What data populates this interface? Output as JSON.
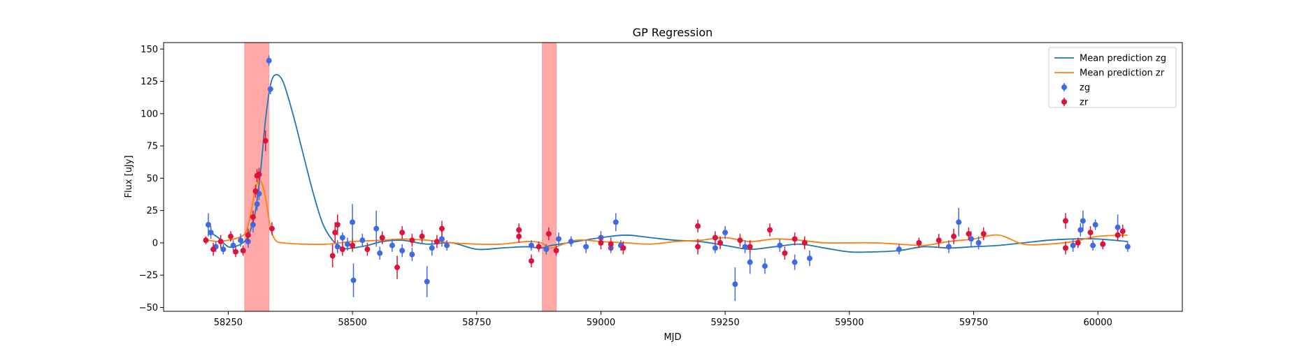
{
  "chart_data": {
    "type": "scatter",
    "title": "GP Regression",
    "xlabel": "MJD",
    "ylabel": "Flux [uJy]",
    "xlim": [
      58120,
      60170
    ],
    "ylim": [
      -53,
      155
    ],
    "xticks": [
      58250,
      58500,
      58750,
      59000,
      59250,
      59500,
      59750,
      60000
    ],
    "yticks": [
      -50,
      -25,
      0,
      25,
      50,
      75,
      100,
      125,
      150
    ],
    "legend_position": "top-right",
    "highlight_regions": [
      {
        "x0": 58283,
        "x1": 58332,
        "color": "#ff9999"
      },
      {
        "x0": 58882,
        "x1": 58910,
        "color": "#ff9999"
      }
    ],
    "series": [
      {
        "name": "Mean prediction zg",
        "kind": "line",
        "color": "#1f77b4",
        "x": [
          58210,
          58230,
          58250,
          58270,
          58285,
          58295,
          58305,
          58315,
          58325,
          58335,
          58345,
          58360,
          58380,
          58400,
          58420,
          58440,
          58460,
          58480,
          58500,
          58530,
          58560,
          58600,
          58650,
          58700,
          58750,
          58800,
          58850,
          58880,
          58900,
          58950,
          59000,
          59050,
          59100,
          59150,
          59200,
          59250,
          59300,
          59350,
          59400,
          59450,
          59500,
          59550,
          59600,
          59650,
          59700,
          59750,
          59800,
          59850,
          59900,
          59950,
          60000,
          60060
        ],
        "y": [
          9,
          4,
          -3,
          -2,
          2,
          10,
          25,
          55,
          95,
          122,
          130,
          125,
          100,
          70,
          40,
          15,
          2,
          -4,
          -4,
          -2,
          1,
          2,
          -1,
          0,
          -5,
          -4,
          -3,
          -4,
          -2,
          1,
          4,
          6,
          4,
          2,
          1,
          -2,
          -5,
          -3,
          -1,
          -4,
          -7,
          -7,
          -6,
          -3,
          -4,
          -3,
          -2,
          0,
          2,
          3,
          3,
          1
        ]
      },
      {
        "name": "Mean prediction zr",
        "kind": "line",
        "color": "#ff7f0e",
        "x": [
          58210,
          58230,
          58250,
          58270,
          58285,
          58295,
          58305,
          58315,
          58325,
          58335,
          58345,
          58360,
          58400,
          58450,
          58500,
          58560,
          58600,
          58650,
          58700,
          58750,
          58800,
          58850,
          58880,
          58900,
          58950,
          59000,
          59050,
          59100,
          59150,
          59200,
          59250,
          59300,
          59350,
          59400,
          59450,
          59500,
          59550,
          59600,
          59650,
          59700,
          59750,
          59800,
          59850,
          59900,
          59950,
          60000,
          60060
        ],
        "y": [
          2,
          1,
          2,
          4,
          8,
          22,
          42,
          48,
          35,
          12,
          2,
          0,
          -1,
          -1,
          1,
          2,
          3,
          2,
          0,
          -1,
          -1,
          1,
          0,
          -4,
          2,
          1,
          0,
          -1,
          1,
          2,
          4,
          1,
          3,
          2,
          0,
          0,
          0,
          -1,
          -2,
          1,
          3,
          6,
          -1,
          -1,
          1,
          5,
          6
        ]
      },
      {
        "name": "zg",
        "kind": "errorbar",
        "color": "#4169e1",
        "points": [
          {
            "x": 58210,
            "y": 14,
            "err": 9
          },
          {
            "x": 58215,
            "y": 8,
            "err": 5
          },
          {
            "x": 58225,
            "y": -3,
            "err": 4
          },
          {
            "x": 58240,
            "y": -5,
            "err": 4
          },
          {
            "x": 58260,
            "y": -2,
            "err": 4
          },
          {
            "x": 58275,
            "y": 2,
            "err": 5
          },
          {
            "x": 58290,
            "y": 1,
            "err": 5
          },
          {
            "x": 58300,
            "y": 14,
            "err": 6
          },
          {
            "x": 58308,
            "y": 30,
            "err": 5
          },
          {
            "x": 58312,
            "y": 38,
            "err": 5
          },
          {
            "x": 58332,
            "y": 141,
            "err": 4
          },
          {
            "x": 58335,
            "y": 119,
            "err": 4
          },
          {
            "x": 58470,
            "y": -3,
            "err": 5
          },
          {
            "x": 58480,
            "y": 4,
            "err": 4
          },
          {
            "x": 58490,
            "y": -1,
            "err": 5
          },
          {
            "x": 58500,
            "y": 16,
            "err": 14
          },
          {
            "x": 58502,
            "y": -29,
            "err": 13
          },
          {
            "x": 58520,
            "y": 2,
            "err": 5
          },
          {
            "x": 58548,
            "y": 11,
            "err": 14
          },
          {
            "x": 58555,
            "y": -8,
            "err": 5
          },
          {
            "x": 58580,
            "y": -2,
            "err": 5
          },
          {
            "x": 58600,
            "y": -6,
            "err": 5
          },
          {
            "x": 58620,
            "y": -9,
            "err": 5
          },
          {
            "x": 58650,
            "y": -30,
            "err": 12
          },
          {
            "x": 58660,
            "y": -4,
            "err": 6
          },
          {
            "x": 58680,
            "y": 3,
            "err": 6
          },
          {
            "x": 58690,
            "y": -2,
            "err": 4
          },
          {
            "x": 58860,
            "y": -2,
            "err": 4
          },
          {
            "x": 58890,
            "y": -5,
            "err": 4
          },
          {
            "x": 58915,
            "y": 3,
            "err": 5
          },
          {
            "x": 58940,
            "y": 1,
            "err": 4
          },
          {
            "x": 58970,
            "y": -3,
            "err": 5
          },
          {
            "x": 59000,
            "y": 4,
            "err": 5
          },
          {
            "x": 59020,
            "y": -4,
            "err": 4
          },
          {
            "x": 59030,
            "y": 16,
            "err": 7
          },
          {
            "x": 59040,
            "y": -2,
            "err": 4
          },
          {
            "x": 59230,
            "y": -4,
            "err": 4
          },
          {
            "x": 59250,
            "y": 8,
            "err": 5
          },
          {
            "x": 59270,
            "y": -32,
            "err": 13
          },
          {
            "x": 59290,
            "y": -3,
            "err": 5
          },
          {
            "x": 59300,
            "y": -15,
            "err": 9
          },
          {
            "x": 59330,
            "y": -18,
            "err": 6
          },
          {
            "x": 59360,
            "y": -2,
            "err": 5
          },
          {
            "x": 59390,
            "y": -15,
            "err": 6
          },
          {
            "x": 59420,
            "y": -12,
            "err": 6
          },
          {
            "x": 59600,
            "y": -5,
            "err": 4
          },
          {
            "x": 59700,
            "y": -3,
            "err": 5
          },
          {
            "x": 59720,
            "y": 16,
            "err": 11
          },
          {
            "x": 59745,
            "y": 3,
            "err": 6
          },
          {
            "x": 59760,
            "y": 0,
            "err": 5
          },
          {
            "x": 59950,
            "y": -2,
            "err": 5
          },
          {
            "x": 59965,
            "y": 10,
            "err": 5
          },
          {
            "x": 59970,
            "y": 17,
            "err": 8
          },
          {
            "x": 59990,
            "y": -2,
            "err": 4
          },
          {
            "x": 59995,
            "y": 14,
            "err": 4
          },
          {
            "x": 60040,
            "y": 12,
            "err": 10
          },
          {
            "x": 60060,
            "y": -3,
            "err": 4
          }
        ]
      },
      {
        "name": "zr",
        "kind": "errorbar",
        "color": "#dc143c",
        "points": [
          {
            "x": 58205,
            "y": 2,
            "err": 3
          },
          {
            "x": 58220,
            "y": -5,
            "err": 5
          },
          {
            "x": 58235,
            "y": 1,
            "err": 5
          },
          {
            "x": 58255,
            "y": 5,
            "err": 4
          },
          {
            "x": 58265,
            "y": -7,
            "err": 4
          },
          {
            "x": 58280,
            "y": -6,
            "err": 4
          },
          {
            "x": 58290,
            "y": 6,
            "err": 5
          },
          {
            "x": 58300,
            "y": 20,
            "err": 5
          },
          {
            "x": 58305,
            "y": 40,
            "err": 5
          },
          {
            "x": 58308,
            "y": 52,
            "err": 5
          },
          {
            "x": 58312,
            "y": 53,
            "err": 5
          },
          {
            "x": 58325,
            "y": 79,
            "err": 8
          },
          {
            "x": 58338,
            "y": 11,
            "err": 5
          },
          {
            "x": 58460,
            "y": -10,
            "err": 9
          },
          {
            "x": 58465,
            "y": 8,
            "err": 8
          },
          {
            "x": 58470,
            "y": 14,
            "err": 8
          },
          {
            "x": 58480,
            "y": -5,
            "err": 5
          },
          {
            "x": 58500,
            "y": -2,
            "err": 5
          },
          {
            "x": 58530,
            "y": -5,
            "err": 5
          },
          {
            "x": 58560,
            "y": 4,
            "err": 5
          },
          {
            "x": 58590,
            "y": -19,
            "err": 9
          },
          {
            "x": 58600,
            "y": 8,
            "err": 5
          },
          {
            "x": 58620,
            "y": 2,
            "err": 5
          },
          {
            "x": 58640,
            "y": 5,
            "err": 5
          },
          {
            "x": 58670,
            "y": 1,
            "err": 5
          },
          {
            "x": 58680,
            "y": 11,
            "err": 6
          },
          {
            "x": 58835,
            "y": 10,
            "err": 5
          },
          {
            "x": 58835,
            "y": 5,
            "err": 5
          },
          {
            "x": 58860,
            "y": -14,
            "err": 5
          },
          {
            "x": 58875,
            "y": -3,
            "err": 4
          },
          {
            "x": 58895,
            "y": 7,
            "err": 5
          },
          {
            "x": 58910,
            "y": -6,
            "err": 4
          },
          {
            "x": 59000,
            "y": 0,
            "err": 5
          },
          {
            "x": 59020,
            "y": -1,
            "err": 5
          },
          {
            "x": 59045,
            "y": -4,
            "err": 5
          },
          {
            "x": 59195,
            "y": 13,
            "err": 5
          },
          {
            "x": 59195,
            "y": -3,
            "err": 6
          },
          {
            "x": 59230,
            "y": 4,
            "err": 5
          },
          {
            "x": 59240,
            "y": 0,
            "err": 5
          },
          {
            "x": 59280,
            "y": 2,
            "err": 5
          },
          {
            "x": 59300,
            "y": -3,
            "err": 5
          },
          {
            "x": 59340,
            "y": 10,
            "err": 5
          },
          {
            "x": 59370,
            "y": -8,
            "err": 5
          },
          {
            "x": 59390,
            "y": 3,
            "err": 5
          },
          {
            "x": 59410,
            "y": 0,
            "err": 5
          },
          {
            "x": 59640,
            "y": 0,
            "err": 4
          },
          {
            "x": 59680,
            "y": 2,
            "err": 5
          },
          {
            "x": 59710,
            "y": 5,
            "err": 6
          },
          {
            "x": 59740,
            "y": 7,
            "err": 5
          },
          {
            "x": 59770,
            "y": 7,
            "err": 5
          },
          {
            "x": 59935,
            "y": 17,
            "err": 6
          },
          {
            "x": 59935,
            "y": -4,
            "err": 5
          },
          {
            "x": 59960,
            "y": 0,
            "err": 4
          },
          {
            "x": 59985,
            "y": 8,
            "err": 5
          },
          {
            "x": 60010,
            "y": -1,
            "err": 4
          },
          {
            "x": 60040,
            "y": 6,
            "err": 4
          },
          {
            "x": 60050,
            "y": 9,
            "err": 5
          }
        ]
      }
    ]
  }
}
